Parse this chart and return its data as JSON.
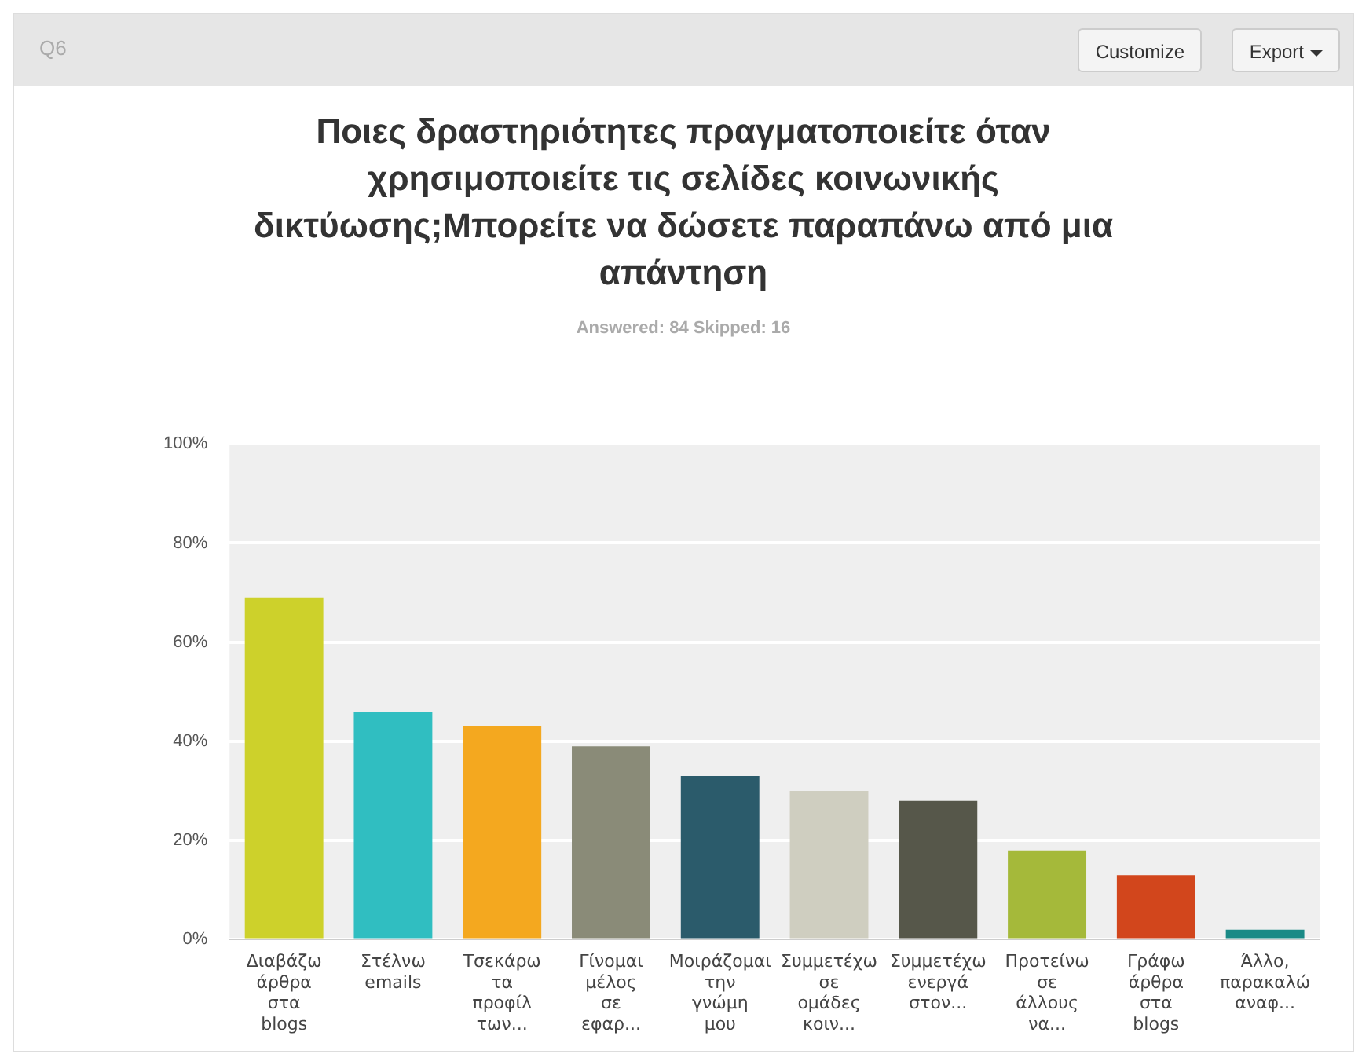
{
  "chart_data": {
    "type": "bar",
    "title": "Ποιες δραστηριότητες πραγματοποιείτε όταν χρησιμοποιείτε τις σελίδες κοινωνικής δικτύωσης;Μπορείτε να δώσετε παραπάνω από μια απάντηση",
    "subtitle": "Answered: 84    Skipped: 16",
    "annotations": [
      "Q6",
      "Customize",
      "Export"
    ],
    "categories": [
      "Διαβάζω άρθρα στα blogs",
      "Στέλνω emails",
      "Τσεκάρω τα προφίλ των...",
      "Γίνομαι μέλος σε εφαρ...",
      "Μοιράζομαι την γνώμη μου",
      "Συμμετέχω σε ομάδες κοιν...",
      "Συμμετέχω ενεργά στον...",
      "Προτείνω σε άλλους να...",
      "Γράφω άρθρα στα blogs",
      "Άλλο, παρακαλώ αναφ..."
    ],
    "values": [
      69,
      46,
      43,
      39,
      33,
      30,
      28,
      18,
      13,
      2
    ],
    "colors": [
      "#cdd12b",
      "#30bec1",
      "#f4a81f",
      "#8a8b78",
      "#2b5b6b",
      "#cfcec0",
      "#56574a",
      "#a5b93a",
      "#d2461c",
      "#1a8a86"
    ],
    "ylim": [
      0,
      100
    ],
    "yticks": [
      {
        "value": 0,
        "label": "0%"
      },
      {
        "value": 20,
        "label": "20%"
      },
      {
        "value": 40,
        "label": "40%"
      },
      {
        "value": 60,
        "label": "60%"
      },
      {
        "value": 80,
        "label": "80%"
      },
      {
        "value": 100,
        "label": "100%"
      }
    ],
    "grid": "y",
    "legend": false
  }
}
